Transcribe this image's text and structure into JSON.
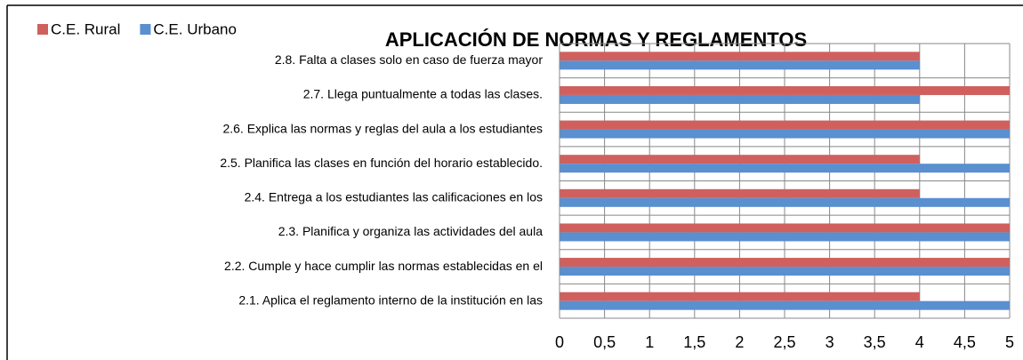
{
  "chart_data": {
    "type": "bar",
    "orientation": "horizontal",
    "title": "APLICACIÓN DE NORMAS Y REGLAMENTOS",
    "categories": [
      "2.1.  Aplica el reglamento interno de la institución en las",
      "2.2.  Cumple y hace cumplir  las normas establecidas en el",
      "2.3.  Planifica y organiza las actividades del aula",
      "2.4.  Entrega a los estudiantes las calificaciones en los",
      "2.5.  Planifica las clases en función del horario establecido.",
      "2.6.  Explica las normas y reglas del aula a los estudiantes",
      "2.7.  Llega puntualmente a todas las clases.",
      "2.8.  Falta a  clases solo en caso de fuerza mayor"
    ],
    "series": [
      {
        "name": "C.E. Rural",
        "color": "#d0605e",
        "values": [
          4,
          5,
          5,
          4,
          4,
          5,
          5,
          4
        ]
      },
      {
        "name": "C.E. Urbano",
        "color": "#5a8fd0",
        "values": [
          5,
          5,
          5,
          5,
          5,
          5,
          4,
          4
        ]
      }
    ],
    "xlim": [
      0,
      5
    ],
    "xticks": [
      0,
      {
        "value": 0.5,
        "label": "0,5"
      },
      1,
      {
        "value": 1.5,
        "label": "1,5"
      },
      2,
      {
        "value": 2.5,
        "label": "2,5"
      },
      3,
      {
        "value": 3.5,
        "label": "3,5"
      },
      4,
      {
        "value": 4.5,
        "label": "4,5"
      },
      5
    ],
    "grid": true,
    "legend": "top-left"
  }
}
